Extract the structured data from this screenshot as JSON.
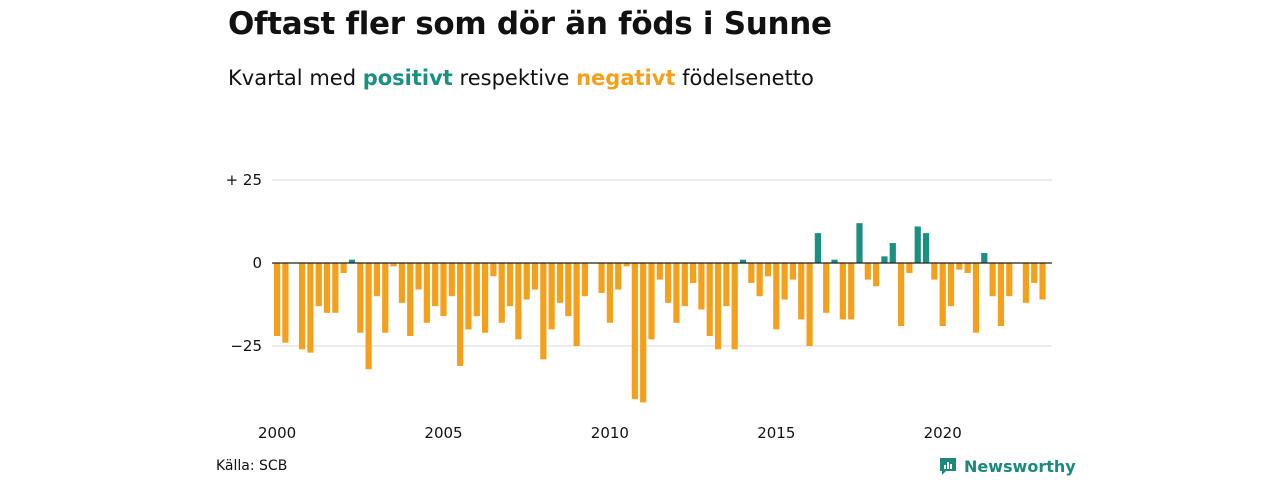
{
  "title": "Oftast fler som dör än föds i Sunne",
  "subtitle": {
    "prefix": "Kvartal med",
    "positive_word": "positivt",
    "middle": "respektive",
    "negative_word": "negativt",
    "suffix": "födelsenetto"
  },
  "colors": {
    "positive": "#1a9080",
    "negative": "#f5a01a",
    "grid": "#d9d9d9",
    "zero": "#222222"
  },
  "source": "Källa: SCB",
  "logo": {
    "text": "Newsworthy",
    "icon": "newsworthy-logo-icon"
  },
  "chart_data": {
    "type": "bar",
    "x_start": "2000 Q1",
    "ylim": [
      -45,
      25
    ],
    "yticks": [
      {
        "value": 25,
        "label": "+ 25"
      },
      {
        "value": 0,
        "label": "0"
      },
      {
        "value": -25,
        "label": "−25"
      }
    ],
    "xticks": [
      "2000",
      "2005",
      "2010",
      "2015",
      "2020"
    ],
    "values": [
      -22,
      -24,
      0,
      -26,
      -27,
      -13,
      -15,
      -15,
      -3,
      1,
      -21,
      -32,
      -10,
      -21,
      -1,
      -12,
      -22,
      -8,
      -18,
      -13,
      -16,
      -10,
      -31,
      -20,
      -16,
      -21,
      -4,
      -18,
      -13,
      -23,
      -11,
      -8,
      -29,
      -20,
      -12,
      -16,
      -25,
      -10,
      0,
      -9,
      -18,
      -8,
      -1,
      -41,
      -42,
      -23,
      -5,
      -12,
      -18,
      -13,
      -6,
      -14,
      -22,
      -26,
      -13,
      -26,
      1,
      -6,
      -10,
      -4,
      -20,
      -11,
      -5,
      -17,
      -25,
      9,
      -15,
      1,
      -17,
      -17,
      12,
      -5,
      -7,
      2,
      6,
      -19,
      -3,
      11,
      9,
      -5,
      -19,
      -13,
      -2,
      -3,
      -21,
      3,
      -10,
      -19,
      -10,
      0,
      -12,
      -6,
      -11
    ]
  }
}
